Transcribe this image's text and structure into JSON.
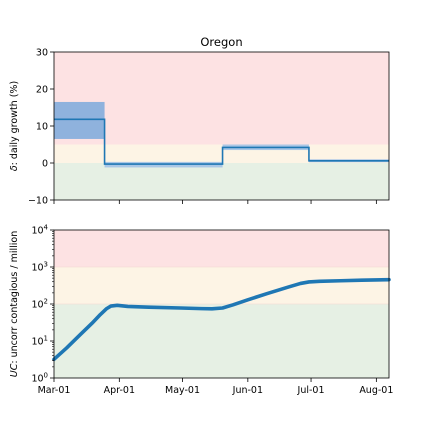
{
  "colors": {
    "red_zone": "#fde2e3",
    "yellow_zone": "#fdf4e5",
    "green_zone": "#e6f0e4",
    "band_fill": "#8fb2dd",
    "band_fill_light": "#aac7e6",
    "line": "#1f77b4",
    "axes": "#000000"
  },
  "chart_data": [
    {
      "type": "line",
      "title": "Oregon",
      "ylabel": "δ: daily growth (%)",
      "ylabel_italic_prefix": "δ",
      "ylabel_rest": ": daily growth (%)",
      "xlim": [
        "2020-03-01",
        "2020-08-07"
      ],
      "ylim": [
        -10,
        30
      ],
      "yticks": [
        -10,
        0,
        10,
        20,
        30
      ],
      "ytick_labels": [
        "−10",
        "0",
        "10",
        "20",
        "30"
      ],
      "xticks": [
        "2020-03-01",
        "2020-04-01",
        "2020-05-01",
        "2020-06-01",
        "2020-07-01",
        "2020-08-01"
      ],
      "xtick_labels_shown": false,
      "zones": [
        {
          "name": "high",
          "from": 5,
          "to": 30
        },
        {
          "name": "medium",
          "from": 0,
          "to": 5
        },
        {
          "name": "low",
          "from": -10,
          "to": 0
        }
      ],
      "series": [
        {
          "step_segments": [
            {
              "x_start": "2020-03-01",
              "x_end": "2020-03-25",
              "value": 11.8,
              "lower": 6.5,
              "upper": 16.5
            },
            {
              "x_start": "2020-03-25",
              "x_end": "2020-05-20",
              "value": -0.3,
              "lower": -1.2,
              "upper": 0.3
            },
            {
              "x_start": "2020-05-20",
              "x_end": "2020-06-30",
              "value": 4.2,
              "lower": 3.5,
              "upper": 5.0
            },
            {
              "x_start": "2020-06-30",
              "x_end": "2020-08-07",
              "value": 0.6,
              "lower": 0.2,
              "upper": 1.0
            }
          ]
        }
      ]
    },
    {
      "type": "line",
      "title": "",
      "ylabel": "UC: uncorr contagious / million",
      "ylabel_italic_prefix": "UC",
      "ylabel_rest": ": uncorr contagious / million",
      "xlim": [
        "2020-03-01",
        "2020-08-07"
      ],
      "yscale": "log",
      "ylim": [
        1,
        10000
      ],
      "yticks": [
        1,
        10,
        100,
        1000,
        10000
      ],
      "ytick_base": "10",
      "ytick_exponents": [
        "0",
        "1",
        "2",
        "3",
        "4"
      ],
      "xticks": [
        "2020-03-01",
        "2020-04-01",
        "2020-05-01",
        "2020-06-01",
        "2020-07-01",
        "2020-08-01"
      ],
      "xtick_labels": [
        "Mar-01",
        "Apr-01",
        "May-01",
        "Jun-01",
        "Jul-01",
        "Aug-01"
      ],
      "zones": [
        {
          "name": "high",
          "from": 1000,
          "to": 10000
        },
        {
          "name": "medium",
          "from": 100,
          "to": 1000
        },
        {
          "name": "low",
          "from": 1,
          "to": 100
        }
      ],
      "series": [
        {
          "x": [
            "2020-03-01",
            "2020-03-07",
            "2020-03-13",
            "2020-03-19",
            "2020-03-23",
            "2020-03-26",
            "2020-03-28",
            "2020-03-31",
            "2020-04-05",
            "2020-04-15",
            "2020-04-30",
            "2020-05-10",
            "2020-05-15",
            "2020-05-20",
            "2020-05-25",
            "2020-06-01",
            "2020-06-10",
            "2020-06-20",
            "2020-06-26",
            "2020-06-30",
            "2020-07-05",
            "2020-07-15",
            "2020-07-25",
            "2020-08-07"
          ],
          "y": [
            3.2,
            6.5,
            14,
            30,
            52,
            75,
            88,
            92,
            86,
            82,
            78,
            75,
            74,
            78,
            95,
            130,
            190,
            285,
            360,
            395,
            410,
            425,
            440,
            455
          ]
        }
      ]
    }
  ]
}
